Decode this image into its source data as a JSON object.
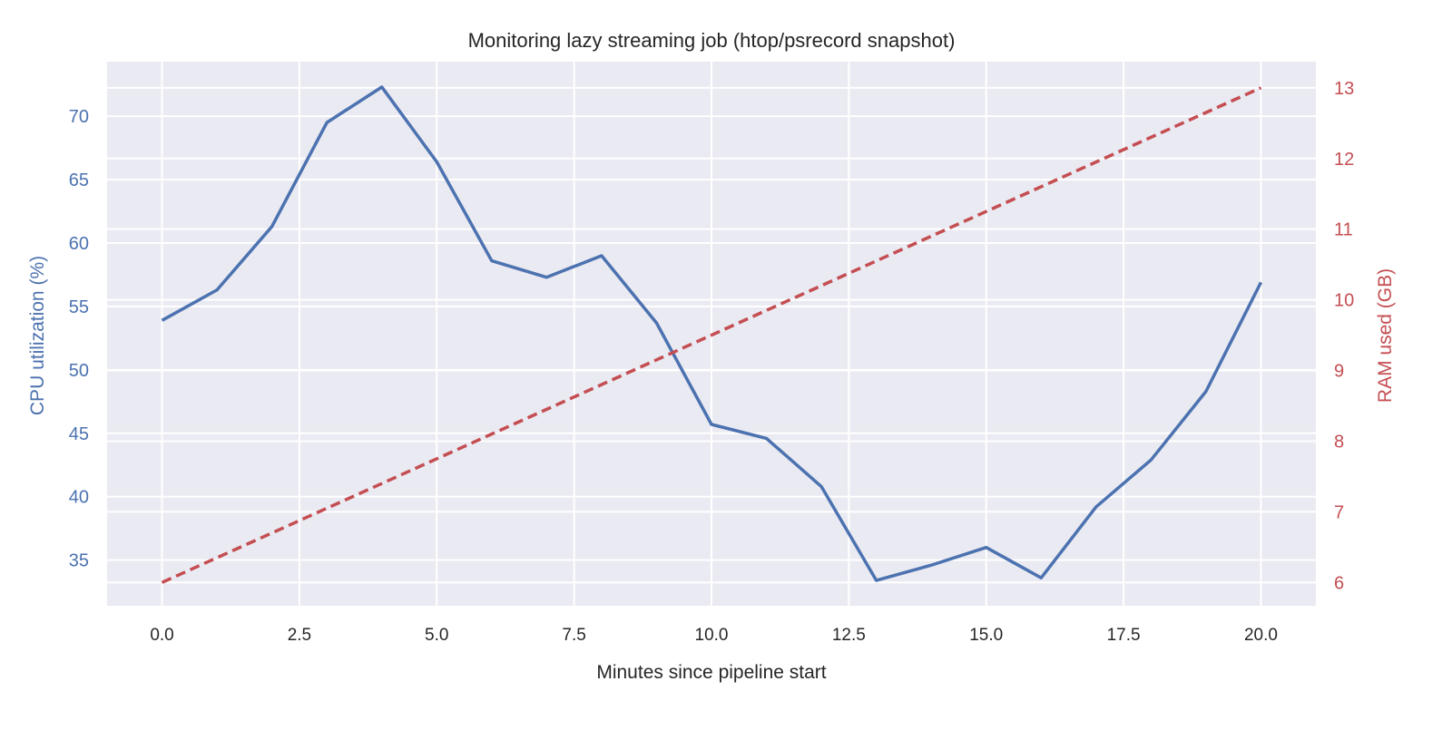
{
  "chart_data": {
    "type": "line",
    "title": "Monitoring lazy streaming job (htop/psrecord snapshot)",
    "xlabel": "Minutes since pipeline start",
    "ylabel_left": "CPU utilization (%)",
    "ylabel_right": "RAM used (GB)",
    "x": [
      0,
      1,
      2,
      3,
      4,
      5,
      6,
      7,
      8,
      9,
      10,
      11,
      12,
      13,
      14,
      15,
      16,
      17,
      18,
      19,
      20
    ],
    "xlim": [
      -1,
      21
    ],
    "ylim_left": [
      31.4,
      74.3
    ],
    "ylim_right": [
      5.67,
      13.37
    ],
    "xticks": [
      "0.0",
      "2.5",
      "5.0",
      "7.5",
      "10.0",
      "12.5",
      "15.0",
      "17.5",
      "20.0"
    ],
    "yticks_left": [
      "35",
      "40",
      "45",
      "50",
      "55",
      "60",
      "65",
      "70"
    ],
    "yticks_right": [
      "6",
      "7",
      "8",
      "9",
      "10",
      "11",
      "12",
      "13"
    ],
    "grid": true,
    "series": [
      {
        "axis": "left",
        "style": "solid",
        "color": "#4c72b0",
        "values": [
          53.9,
          56.3,
          61.3,
          69.5,
          72.3,
          66.4,
          58.6,
          57.3,
          59.0,
          53.7,
          45.7,
          44.6,
          40.8,
          33.4,
          34.6,
          36.0,
          33.6,
          39.2,
          42.9,
          48.3,
          56.9
        ]
      },
      {
        "axis": "right",
        "style": "dashed",
        "color": "#c44e52",
        "values": [
          6.0,
          6.35,
          6.7,
          7.05,
          7.4,
          7.75,
          8.1,
          8.45,
          8.8,
          9.15,
          9.5,
          9.85,
          10.2,
          10.55,
          10.9,
          11.25,
          11.6,
          11.95,
          12.3,
          12.65,
          13.0
        ]
      }
    ],
    "colors": {
      "background": "#eaeaf2",
      "grid": "#ffffff",
      "left_axis": "#4c72b0",
      "right_axis": "#c44e52",
      "text": "#262626"
    }
  }
}
